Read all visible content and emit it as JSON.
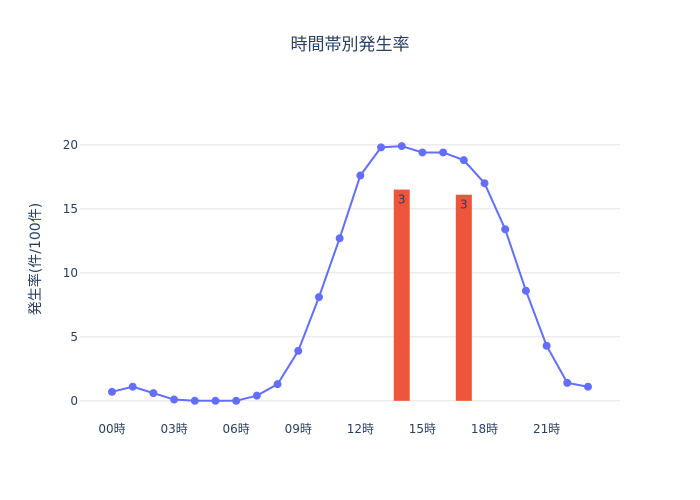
{
  "chart_data": {
    "type": "line",
    "title": "時間帯別発生率",
    "ylabel": "発生率(件/100件)",
    "xlabel": "",
    "ylim": [
      -1.5,
      23.5
    ],
    "yticks": [
      0,
      5,
      10,
      15,
      20
    ],
    "x": [
      0,
      1,
      2,
      3,
      4,
      5,
      6,
      7,
      8,
      9,
      10,
      11,
      12,
      13,
      14,
      15,
      16,
      17,
      18,
      19,
      20,
      21,
      22,
      23
    ],
    "xticks": [
      {
        "value": 0,
        "label": "00時"
      },
      {
        "value": 3,
        "label": "03時"
      },
      {
        "value": 6,
        "label": "06時"
      },
      {
        "value": 9,
        "label": "09時"
      },
      {
        "value": 12,
        "label": "12時"
      },
      {
        "value": 15,
        "label": "15時"
      },
      {
        "value": 18,
        "label": "18時"
      },
      {
        "value": 21,
        "label": "21時"
      }
    ],
    "series": [
      {
        "kind": "line",
        "color": "#636efa",
        "values": [
          0.7,
          1.1,
          0.6,
          0.1,
          0.0,
          0.0,
          0.0,
          0.4,
          1.3,
          3.9,
          8.1,
          12.7,
          17.6,
          19.8,
          19.9,
          19.4,
          19.4,
          18.8,
          17.0,
          13.4,
          8.6,
          4.3,
          1.4,
          1.1
        ]
      },
      {
        "kind": "bar",
        "color": "#ef553b",
        "x": [
          14,
          17
        ],
        "values": [
          16.5,
          16.1
        ],
        "labels": [
          "3",
          "3"
        ]
      }
    ],
    "grid": true
  }
}
